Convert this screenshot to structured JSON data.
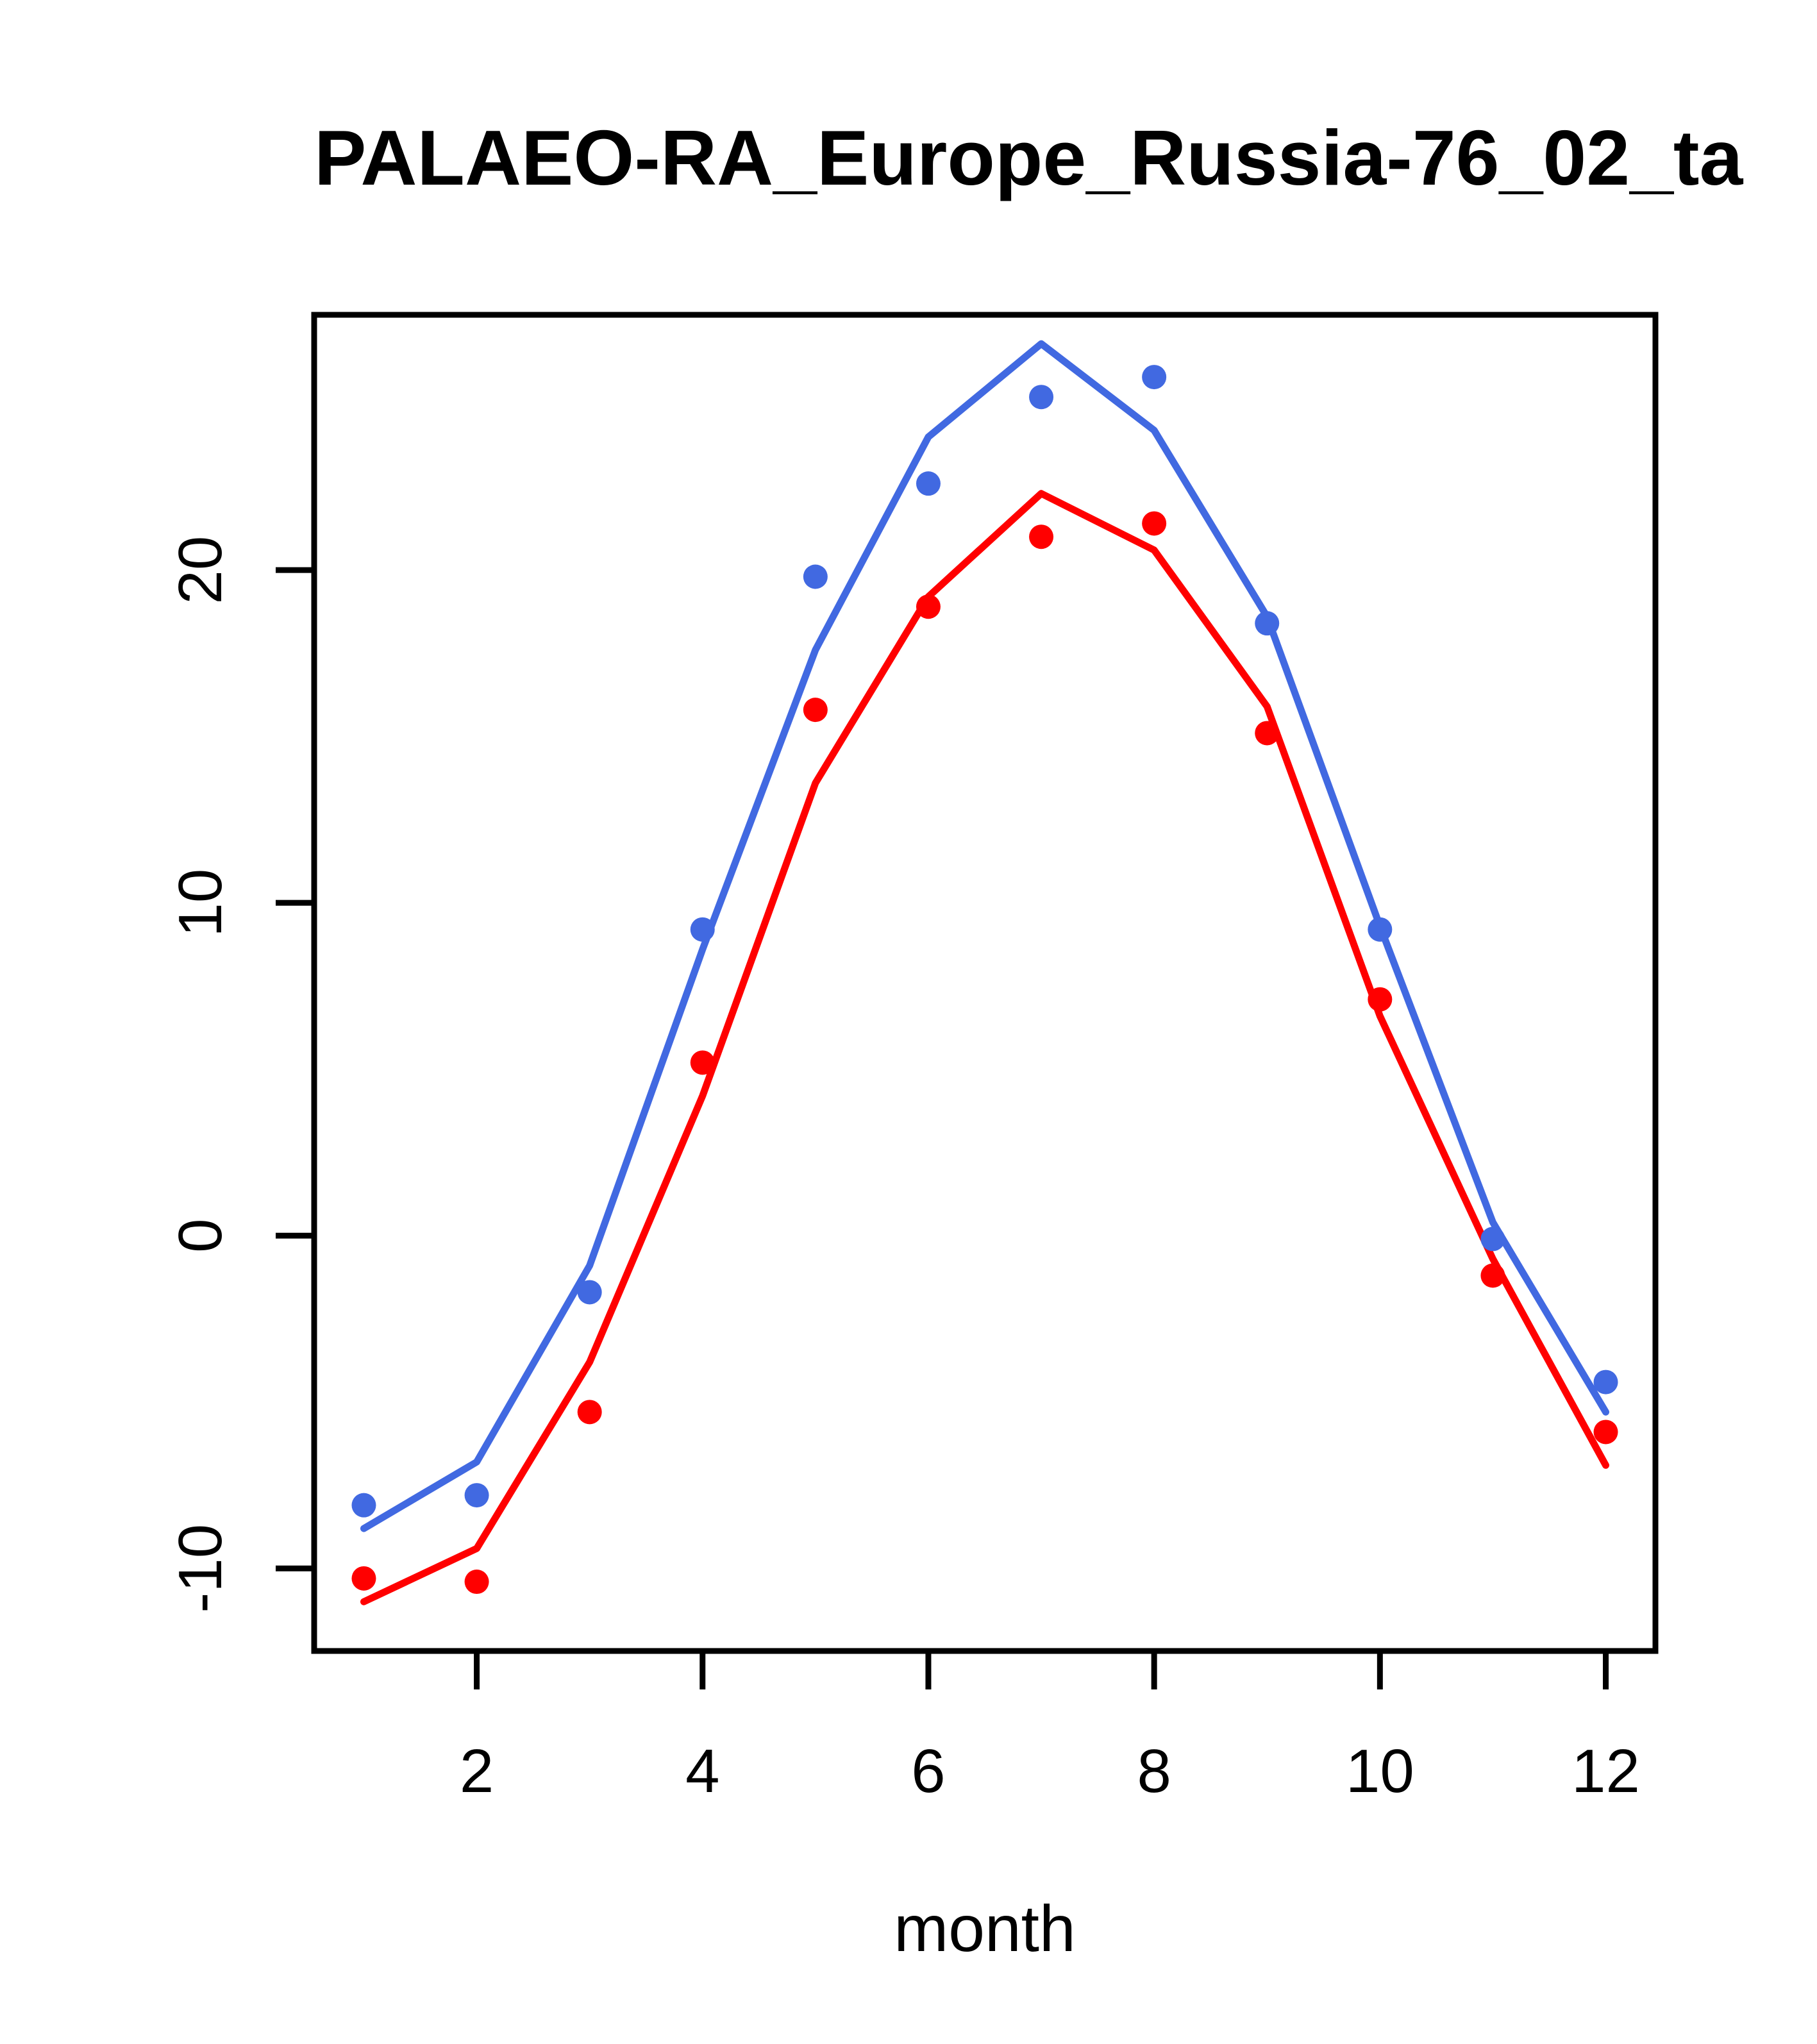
{
  "page": {
    "background": "#ffffff",
    "foreground": "#000000"
  },
  "chart_data": {
    "type": "line",
    "title": "PALAEO-RA_Europe_Russia-76_02_ta",
    "xlabel": "month",
    "ylabel": "",
    "x": [
      1,
      2,
      3,
      4,
      5,
      6,
      7,
      8,
      9,
      10,
      11,
      12
    ],
    "x_ticks": [
      2,
      4,
      6,
      8,
      10,
      12
    ],
    "x_tick_labels": [
      "2",
      "4",
      "6",
      "8",
      "10",
      "12"
    ],
    "y_ticks": [
      -10,
      0,
      10,
      20
    ],
    "y_tick_labels": [
      "-10",
      "0",
      "10",
      "20"
    ],
    "xlim": [
      0.56,
      12.44
    ],
    "ylim": [
      -12.48,
      27.67
    ],
    "grid": false,
    "legend_position": "none",
    "axis_color": "#000000",
    "series": [
      {
        "name": "blue-line-series",
        "type": "line",
        "color": "#4169e1",
        "values": [
          -8.8,
          -6.8,
          -0.9,
          8.6,
          17.6,
          24.0,
          26.8,
          24.2,
          18.6,
          9.3,
          0.4,
          -5.3
        ]
      },
      {
        "name": "blue-point-series",
        "type": "scatter",
        "color": "#4169e1",
        "values": [
          -8.1,
          -7.8,
          -1.7,
          9.2,
          19.8,
          22.6,
          25.2,
          25.8,
          18.4,
          9.2,
          -0.1,
          -4.4
        ]
      },
      {
        "name": "red-line-series",
        "type": "line",
        "color": "#ff0000",
        "values": [
          -11.0,
          -9.4,
          -3.8,
          4.2,
          13.6,
          19.2,
          22.3,
          20.6,
          15.9,
          6.6,
          -0.7,
          -6.9
        ]
      },
      {
        "name": "red-point-series",
        "type": "scatter",
        "color": "#ff0000",
        "values": [
          -10.3,
          -10.4,
          -5.3,
          5.2,
          15.8,
          18.9,
          21.0,
          21.4,
          15.1,
          7.1,
          -1.2,
          -5.9
        ]
      }
    ]
  }
}
